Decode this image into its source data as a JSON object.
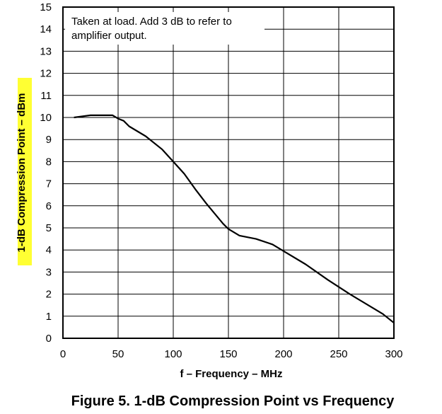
{
  "chart_data": {
    "type": "line",
    "title": "Figure 5. 1-dB Compression Point vs Frequency",
    "xlabel": "f – Frequency – MHz",
    "ylabel": "1-dB Compression Point – dBm",
    "xlim": [
      0,
      300
    ],
    "ylim": [
      0,
      15
    ],
    "xticks": [
      0,
      50,
      100,
      150,
      200,
      250,
      300
    ],
    "yticks": [
      0,
      1,
      2,
      3,
      4,
      5,
      6,
      7,
      8,
      9,
      10,
      11,
      12,
      13,
      14,
      15
    ],
    "grid": true,
    "annotation": [
      "Taken at load. Add 3 dB to refer to",
      "amplifier output."
    ],
    "ylabel_highlight": "#ffff33",
    "series": [
      {
        "x": [
          10,
          25,
          35,
          45,
          50,
          55,
          60,
          75,
          90,
          100,
          110,
          120,
          130,
          140,
          145,
          150,
          160,
          175,
          190,
          200,
          220,
          240,
          260,
          280,
          290,
          300
        ],
        "y": [
          10.0,
          10.1,
          10.1,
          10.1,
          9.95,
          9.85,
          9.6,
          9.15,
          8.55,
          8.0,
          7.45,
          6.75,
          6.1,
          5.5,
          5.2,
          4.95,
          4.65,
          4.5,
          4.25,
          3.95,
          3.35,
          2.65,
          2.0,
          1.4,
          1.1,
          0.7
        ]
      }
    ]
  }
}
